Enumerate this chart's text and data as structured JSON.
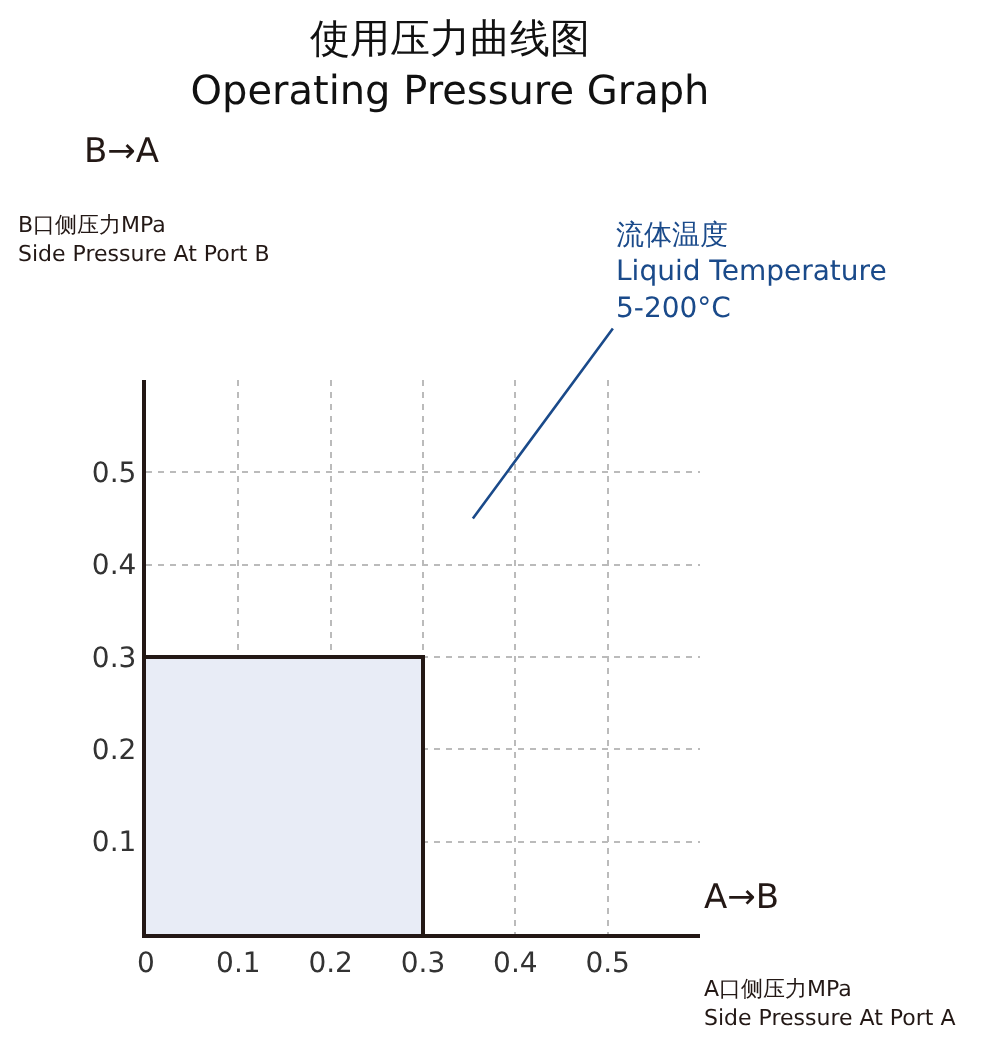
{
  "chart_data": {
    "type": "step",
    "title": "使用压力曲线图\nOperating Pressure Graph",
    "xlabel": "A口侧压力MPa\nSide Pressure At Port A",
    "series": [
      {
        "type": "area",
        "color": "#e8ecf6",
        "x": [
          0,
          0.3
        ],
        "values": [
          0.3,
          0
        ]
      }
    ],
    "annotations": [
      "A→B",
      "B→A",
      "B口侧压力MPa\nSide Pressure At Port B",
      "流体温度\nLiquid Temperature\n5-200°C"
    ],
    "xlim": [
      0,
      0.6
    ],
    "ylim": [
      0,
      0.6
    ],
    "xticks": [
      0,
      0.1,
      0.2,
      0.3,
      0.4,
      0.5
    ],
    "yticks": [
      0.1,
      0.2,
      0.3,
      0.4,
      0.5
    ],
    "grid": true,
    "line_style": "solid",
    "marker": "none"
  }
}
